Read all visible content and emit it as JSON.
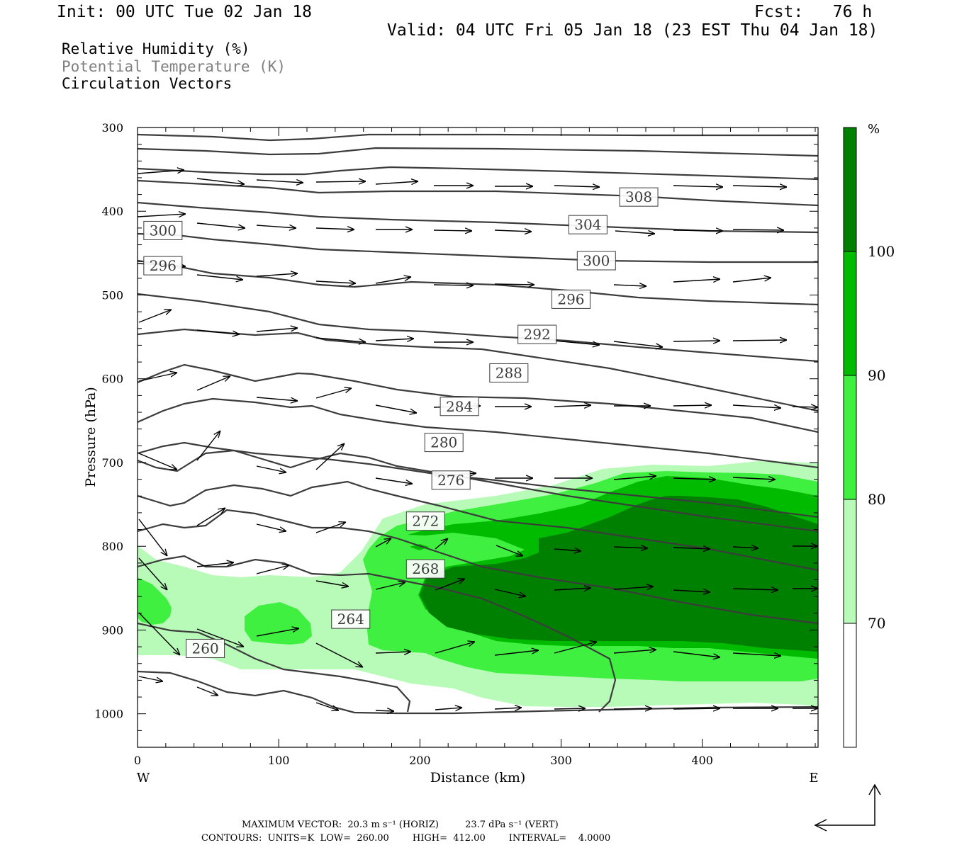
{
  "header": {
    "init": "Init: 00 UTC Tue 02 Jan 18",
    "fcst": "Fcst:   76 h",
    "valid": "Valid: 04 UTC Fri 05 Jan 18 (23 EST Thu 04 Jan 18)"
  },
  "fields": [
    "Relative Humidity (%)",
    "Potential Temperature (K)",
    "Circulation Vectors"
  ],
  "colors": {
    "rh70": "#b8fbb8",
    "rh80": "#40f040",
    "rh90": "#00bb00",
    "rh100": "#008000",
    "contour": "#3c3c3c",
    "field2": "#808080"
  },
  "footer": {
    "max_vector": "MAXIMUM VECTOR:  20.3 m s⁻¹ (HORIZ)         23.7 dPa s⁻¹ (VERT)",
    "contours": "CONTOURS:  UNITS=K  LOW=  260.00        HIGH=  412.00        INTERVAL=    4.0000"
  },
  "chart_data": {
    "type": "cross-section",
    "xlabel": "Distance (km)",
    "ylabel": "Pressure (hPa)",
    "xlim": [
      0,
      482
    ],
    "ylim": [
      1040,
      300
    ],
    "xticks": [
      0,
      100,
      200,
      300,
      400
    ],
    "yticks": [
      300,
      400,
      500,
      600,
      700,
      800,
      900,
      1000
    ],
    "x_end_labels": {
      "left": "W",
      "right": "E"
    },
    "colorbar": {
      "unit": "%",
      "levels": [
        70,
        80,
        90,
        100
      ]
    },
    "theta_labels": [
      {
        "value": "308",
        "x": 355,
        "p": 383
      },
      {
        "value": "304",
        "x": 319,
        "p": 416
      },
      {
        "value": "300",
        "x": 18,
        "p": 423
      },
      {
        "value": "300",
        "x": 325,
        "p": 459
      },
      {
        "value": "296",
        "x": 18,
        "p": 465
      },
      {
        "value": "296",
        "x": 307,
        "p": 505
      },
      {
        "value": "292",
        "x": 283,
        "p": 547
      },
      {
        "value": "288",
        "x": 263,
        "p": 593
      },
      {
        "value": "284",
        "x": 228,
        "p": 633
      },
      {
        "value": "280",
        "x": 217,
        "p": 676
      },
      {
        "value": "276",
        "x": 222,
        "p": 721
      },
      {
        "value": "272",
        "x": 204,
        "p": 770
      },
      {
        "value": "268",
        "x": 204,
        "p": 827
      },
      {
        "value": "264",
        "x": 151,
        "p": 887
      },
      {
        "value": "260",
        "x": 48,
        "p": 922
      }
    ]
  }
}
